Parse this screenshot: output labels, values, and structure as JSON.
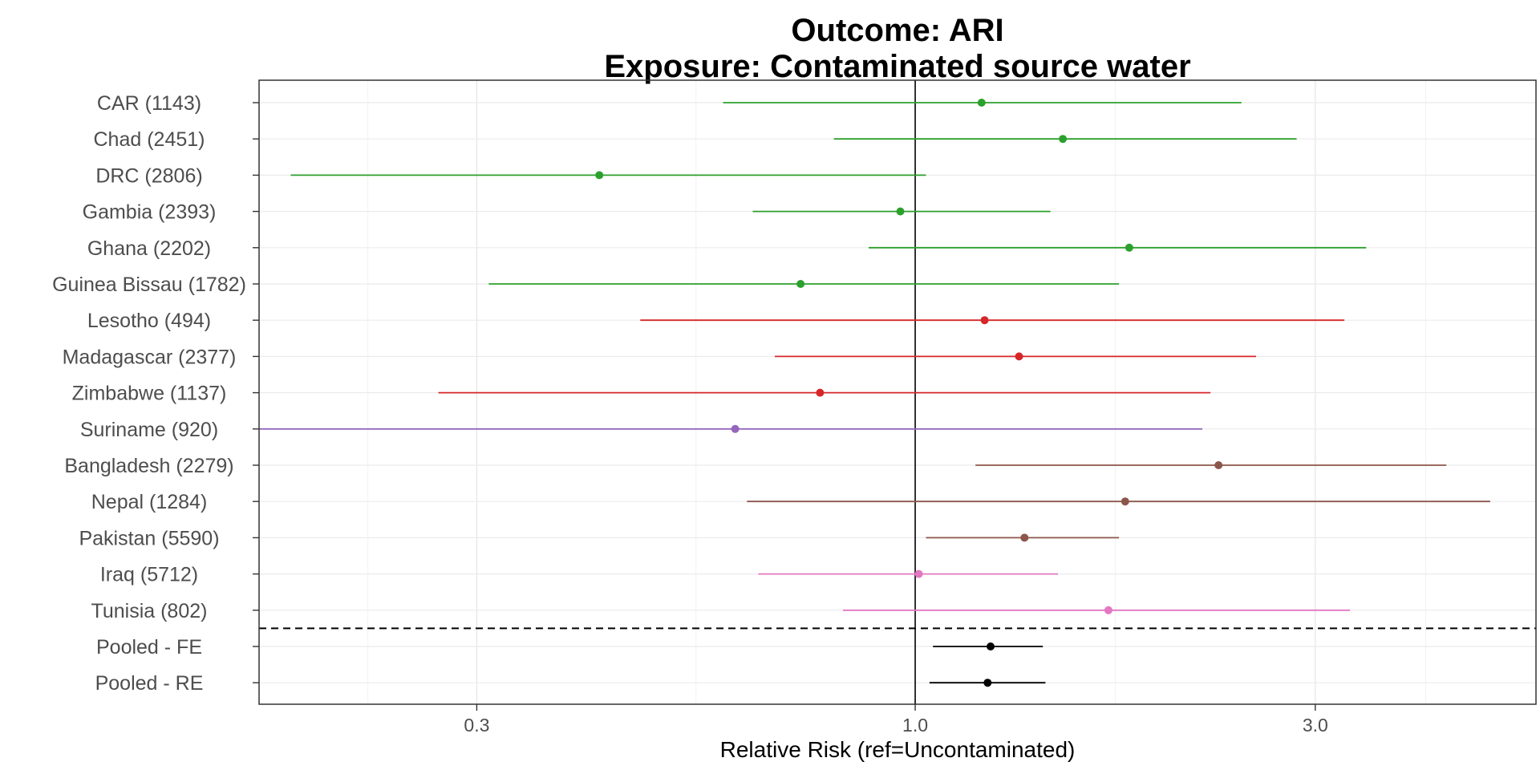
{
  "chart_data": {
    "type": "forest",
    "title_lines": [
      "Outcome: ARI",
      "Exposure: Contaminated source water"
    ],
    "xlabel": "Relative Risk (ref=Uncontaminated)",
    "x_scale": "log",
    "xlim": [
      0.165,
      5.5
    ],
    "x_ticks": [
      0.3,
      1.0,
      3.0
    ],
    "x_tick_labels": [
      "0.3",
      "1.0",
      "3.0"
    ],
    "reference_line": 1.0,
    "grid": true,
    "separator_after_row": 15,
    "rows": [
      {
        "label": "CAR (1143)",
        "rr": 1.2,
        "lo": 0.59,
        "hi": 2.45,
        "color": "#2ca02c"
      },
      {
        "label": "Chad (2451)",
        "rr": 1.5,
        "lo": 0.8,
        "hi": 2.85,
        "color": "#2ca02c"
      },
      {
        "label": "DRC (2806)",
        "rr": 0.42,
        "lo": 0.18,
        "hi": 1.03,
        "color": "#2ca02c"
      },
      {
        "label": "Gambia (2393)",
        "rr": 0.96,
        "lo": 0.64,
        "hi": 1.45,
        "color": "#2ca02c"
      },
      {
        "label": "Ghana (2202)",
        "rr": 1.8,
        "lo": 0.88,
        "hi": 3.45,
        "color": "#2ca02c"
      },
      {
        "label": "Guinea Bissau (1782)",
        "rr": 0.73,
        "lo": 0.31,
        "hi": 1.75,
        "color": "#2ca02c"
      },
      {
        "label": "Lesotho (494)",
        "rr": 1.21,
        "lo": 0.47,
        "hi": 3.25,
        "color": "#d62728"
      },
      {
        "label": "Madagascar (2377)",
        "rr": 1.33,
        "lo": 0.68,
        "hi": 2.55,
        "color": "#d62728"
      },
      {
        "label": "Zimbabwe (1137)",
        "rr": 0.77,
        "lo": 0.27,
        "hi": 2.25,
        "color": "#d62728"
      },
      {
        "label": "Suriname (920)",
        "rr": 0.61,
        "lo": 0.165,
        "hi": 2.2,
        "color": "#9467bd"
      },
      {
        "label": "Bangladesh (2279)",
        "rr": 2.3,
        "lo": 1.18,
        "hi": 4.3,
        "color": "#8c564b"
      },
      {
        "label": "Nepal (1284)",
        "rr": 1.78,
        "lo": 0.63,
        "hi": 4.85,
        "color": "#8c564b"
      },
      {
        "label": "Pakistan (5590)",
        "rr": 1.35,
        "lo": 1.03,
        "hi": 1.75,
        "color": "#8c564b"
      },
      {
        "label": "Iraq (5712)",
        "rr": 1.01,
        "lo": 0.65,
        "hi": 1.48,
        "color": "#e377c2"
      },
      {
        "label": "Tunisia (802)",
        "rr": 1.7,
        "lo": 0.82,
        "hi": 3.3,
        "color": "#e377c2"
      },
      {
        "label": "Pooled - FE",
        "rr": 1.23,
        "lo": 1.05,
        "hi": 1.42,
        "color": "#000000"
      },
      {
        "label": "Pooled - RE",
        "rr": 1.22,
        "lo": 1.04,
        "hi": 1.43,
        "color": "#000000"
      }
    ]
  }
}
